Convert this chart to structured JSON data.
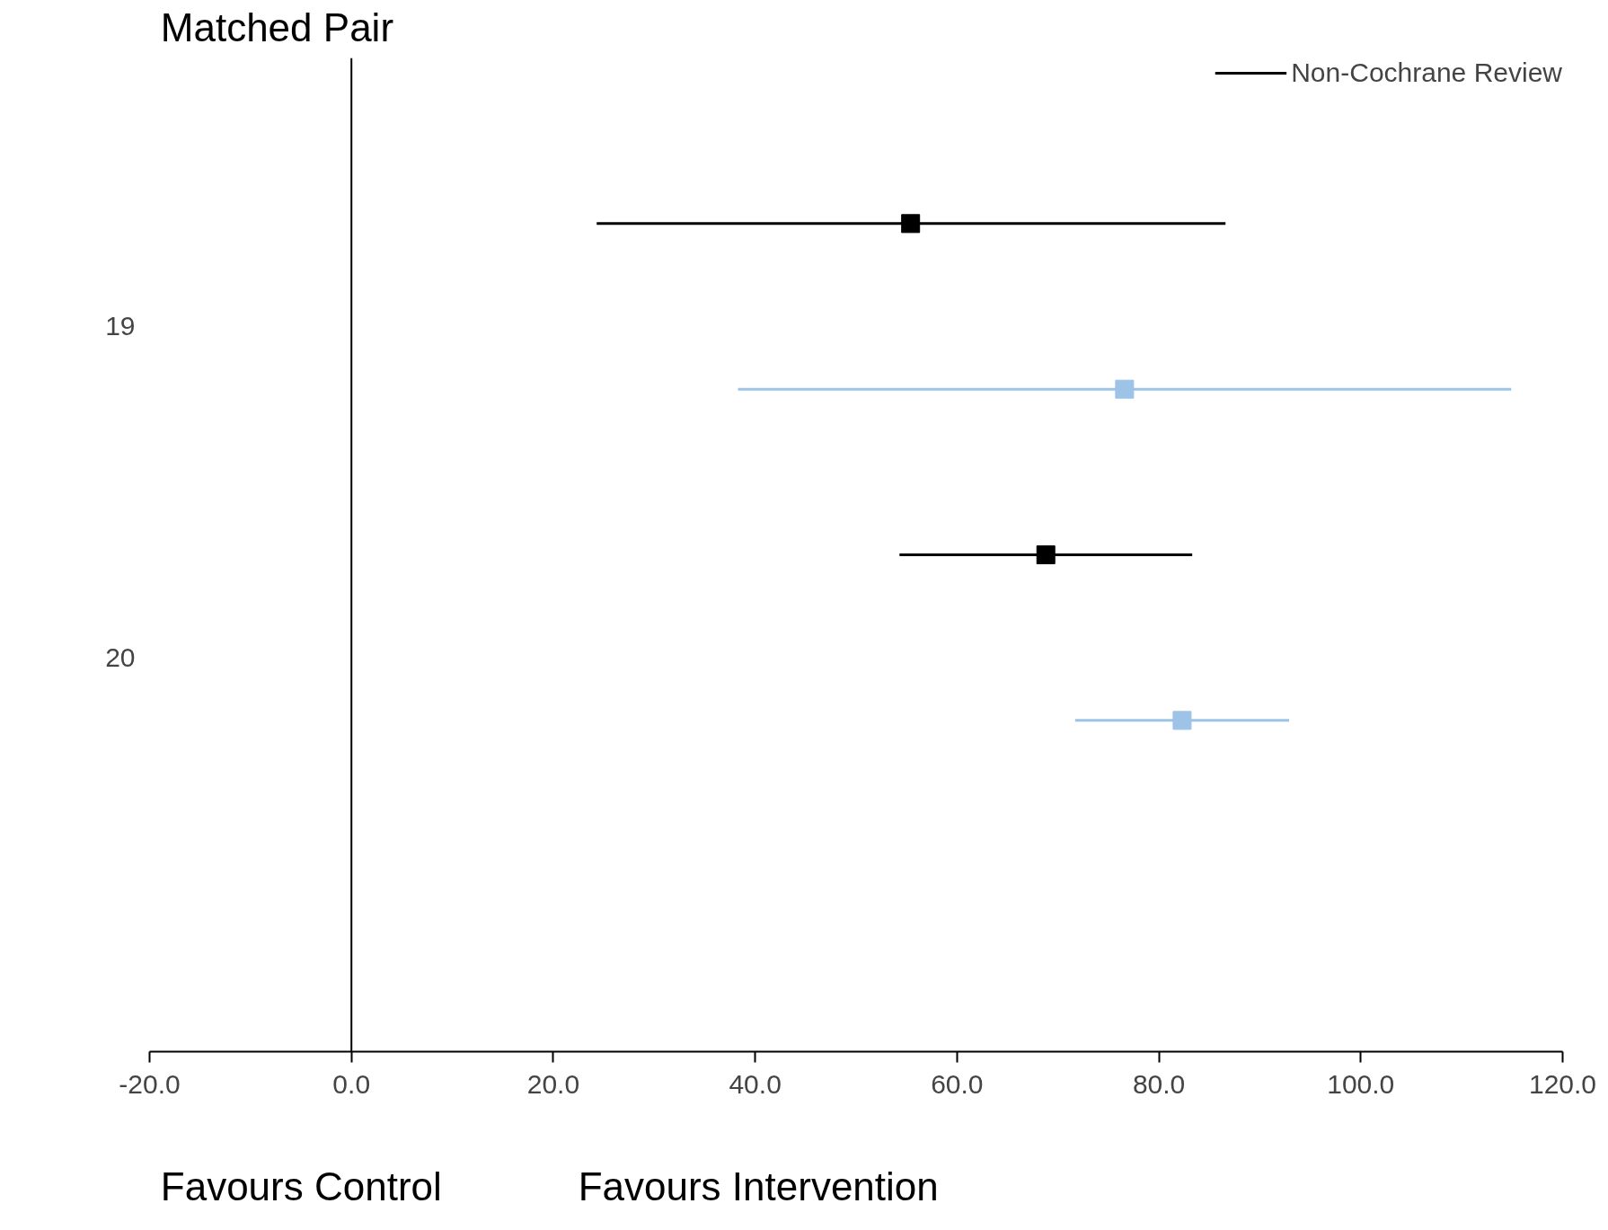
{
  "chart_data": {
    "type": "scatter",
    "orientation": "horizontal",
    "ylabel": "Matched Pair",
    "categories": [
      "19",
      "20"
    ],
    "series": [
      {
        "name": "Non-Cochrane Review",
        "color": "#000000",
        "values": [
          55.4,
          68.8
        ],
        "errors": [
          [
            24.3,
            86.6
          ],
          [
            54.3,
            83.3
          ]
        ]
      },
      {
        "color": "#9dc3e6",
        "values": [
          76.6,
          82.3
        ],
        "errors": [
          [
            38.3,
            114.9
          ],
          [
            71.7,
            92.9
          ]
        ]
      }
    ],
    "xlim": [
      -20,
      120
    ],
    "xticks": [
      {
        "value": -20,
        "label": "-20.0"
      },
      {
        "value": 0,
        "label": "0.0"
      },
      {
        "value": 20,
        "label": "20.0"
      },
      {
        "value": 40,
        "label": "40.0"
      },
      {
        "value": 60,
        "label": "60.0"
      },
      {
        "value": 80,
        "label": "80.0"
      },
      {
        "value": 100,
        "label": "100.0"
      },
      {
        "value": 120,
        "label": "120.0"
      }
    ],
    "ref_lines": [
      {
        "axis": "x",
        "value": 0
      }
    ],
    "marker": "square",
    "grid": false,
    "legend": "top right",
    "annotations": [
      "Favours Control",
      "Favours Intervention"
    ]
  }
}
